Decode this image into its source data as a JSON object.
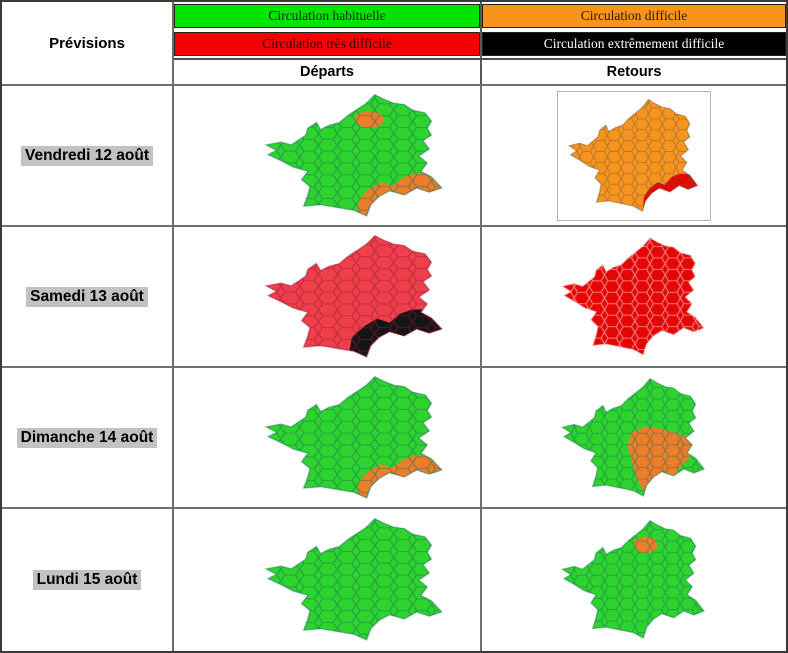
{
  "header": {
    "previsions_label": "Prévisions",
    "departs_label": "Départs",
    "retours_label": "Retours",
    "legend": [
      {
        "label": "Circulation habituelle",
        "bg": "#00e400",
        "text": "#072c00"
      },
      {
        "label": "Circulation difficile",
        "bg": "#f7941d",
        "text": "#2d1a00"
      },
      {
        "label": "Circulation très difficile",
        "bg": "#f50000",
        "text": "#300000"
      },
      {
        "label": "Circulation extrêmement difficile",
        "bg": "#000000",
        "text": "#ffffff"
      }
    ]
  },
  "palette": {
    "green": "#2ed32e",
    "orange": "#ee7d2a",
    "orange_full": "#f7941d",
    "red_crimson": "#ef3f4b",
    "red_bright": "#e60505",
    "black": "#151515"
  },
  "rows": [
    {
      "date": "Vendredi 12 août",
      "departs": {
        "base": "green",
        "areas": [
          {
            "area": "ile_de_france",
            "level": "orange"
          },
          {
            "area": "southeast",
            "level": "orange"
          }
        ]
      },
      "retours": {
        "base": "orange_full",
        "framed": true,
        "areas": [
          {
            "area": "southeast_small",
            "level": "red_bright"
          }
        ]
      }
    },
    {
      "date": "Samedi 13 août",
      "departs": {
        "base": "red_crimson",
        "areas": [
          {
            "area": "southeast_large",
            "level": "black"
          }
        ]
      },
      "retours": {
        "base": "red_bright",
        "areas": []
      }
    },
    {
      "date": "Dimanche 14 août",
      "departs": {
        "base": "green",
        "areas": [
          {
            "area": "southeast",
            "level": "orange"
          }
        ]
      },
      "retours": {
        "base": "green",
        "areas": [
          {
            "area": "rhone_alpes",
            "level": "orange"
          }
        ]
      }
    },
    {
      "date": "Lundi 15 août",
      "departs": {
        "base": "green",
        "areas": []
      },
      "retours": {
        "base": "green",
        "areas": [
          {
            "area": "ile_de_france",
            "level": "orange"
          }
        ]
      }
    }
  ]
}
